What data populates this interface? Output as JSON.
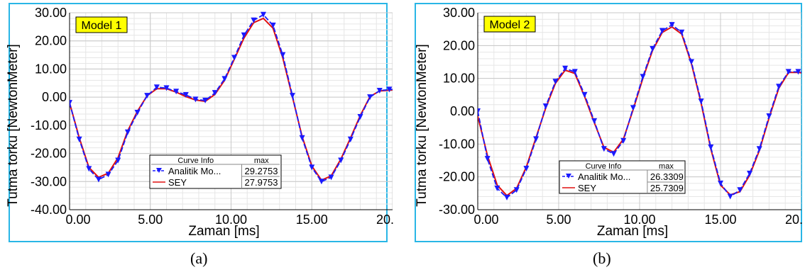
{
  "charts_meta": {
    "series_colors": {
      "analitik": "#1a1aff",
      "sey": "#e01010"
    },
    "frame_color": "#29b6e6",
    "model_label_bg": "#ffff00"
  },
  "chart_data": [
    {
      "type": "line",
      "panel_caption": "(a)",
      "model_label": "Model 1",
      "xlabel": "Zaman [ms]",
      "ylabel": "Tutma torku [NewtonMeter]",
      "xlim": [
        0,
        20
      ],
      "ylim": [
        -40,
        30
      ],
      "xticks": [
        0,
        5,
        10,
        15,
        20
      ],
      "xtick_labels": [
        "0.00",
        "5.00",
        "10.00",
        "15.00",
        "20."
      ],
      "yticks": [
        -40,
        -30,
        -20,
        -10,
        0,
        10,
        20,
        30
      ],
      "ytick_labels": [
        "-40.00",
        "-30.00",
        "-20.00",
        "-10.00",
        "0.00",
        "10.00",
        "20.00",
        "30.00"
      ],
      "grid": true,
      "legend": {
        "header": "Curve Info",
        "col_header": "max",
        "rows": [
          {
            "name": "Analitik Mo...",
            "max": "29.2753"
          },
          {
            "name": "SEY",
            "max": "27.9753"
          }
        ]
      },
      "x": [
        0.0,
        0.6,
        1.2,
        1.8,
        2.4,
        3.0,
        3.6,
        4.2,
        4.8,
        5.4,
        6.0,
        6.6,
        7.2,
        7.8,
        8.4,
        9.0,
        9.6,
        10.2,
        10.8,
        11.4,
        12.0,
        12.6,
        13.2,
        13.8,
        14.4,
        15.0,
        15.6,
        16.2,
        16.8,
        17.4,
        18.0,
        18.6,
        19.2,
        19.8,
        20.3
      ],
      "series": [
        {
          "name": "Analitik Mo...",
          "values": [
            -2.0,
            -15.0,
            -25.5,
            -29.3,
            -27.5,
            -22.5,
            -12.5,
            -5.5,
            0.5,
            3.5,
            3.2,
            2.0,
            0.8,
            -0.8,
            -1.2,
            1.5,
            6.5,
            14.0,
            22.0,
            27.3,
            29.3,
            25.5,
            15.0,
            0.5,
            -14.5,
            -25.0,
            -30.0,
            -28.5,
            -22.5,
            -15.0,
            -7.0,
            0.0,
            2.3,
            2.7,
            2.8
          ],
          "markers": true
        },
        {
          "name": "SEY",
          "values": [
            -2.0,
            -14.5,
            -25.0,
            -28.5,
            -27.0,
            -21.5,
            -12.0,
            -5.0,
            0.5,
            3.0,
            3.0,
            1.8,
            0.2,
            -1.0,
            -1.5,
            1.0,
            6.0,
            13.5,
            21.0,
            26.5,
            28.0,
            24.5,
            14.0,
            0.0,
            -14.0,
            -24.5,
            -29.5,
            -28.0,
            -22.0,
            -14.5,
            -6.5,
            0.2,
            2.2,
            2.5,
            2.6
          ],
          "markers": false
        }
      ]
    },
    {
      "type": "line",
      "panel_caption": "(b)",
      "model_label": "Model 2",
      "xlabel": "Zaman [ms]",
      "ylabel": "Tutma torku [NewtonMeter]",
      "xlim": [
        0,
        20
      ],
      "ylim": [
        -30,
        30
      ],
      "xticks": [
        0,
        5,
        10,
        15,
        20
      ],
      "xtick_labels": [
        "0.00",
        "5.00",
        "10.00",
        "15.00",
        "20."
      ],
      "yticks": [
        -30,
        -20,
        -10,
        0,
        10,
        20,
        30
      ],
      "ytick_labels": [
        "-30.00",
        "-20.00",
        "-10.00",
        "0.00",
        "10.00",
        "20.00",
        "30.00"
      ],
      "grid": true,
      "legend": {
        "header": "Curve Info",
        "col_header": "max",
        "rows": [
          {
            "name": "Analitik Mo...",
            "max": "26.3309"
          },
          {
            "name": "SEY",
            "max": "25.7309"
          }
        ]
      },
      "x": [
        0.0,
        0.6,
        1.2,
        1.8,
        2.4,
        3.0,
        3.6,
        4.2,
        4.8,
        5.4,
        6.0,
        6.6,
        7.2,
        7.8,
        8.4,
        9.0,
        9.6,
        10.2,
        10.8,
        11.4,
        12.0,
        12.6,
        13.2,
        13.8,
        14.4,
        15.0,
        15.6,
        16.2,
        16.8,
        17.4,
        18.0,
        18.6,
        19.2,
        19.8,
        20.3
      ],
      "series": [
        {
          "name": "Analitik Mo...",
          "values": [
            0.0,
            -14.5,
            -23.5,
            -26.3,
            -24.0,
            -17.5,
            -8.5,
            1.5,
            9.0,
            13.0,
            12.0,
            5.0,
            -3.0,
            -11.5,
            -13.0,
            -9.0,
            1.0,
            10.5,
            19.0,
            24.5,
            26.3,
            24.0,
            15.0,
            3.0,
            -11.0,
            -22.0,
            -26.0,
            -24.0,
            -19.0,
            -11.5,
            -1.5,
            7.5,
            12.0,
            12.0,
            11.8
          ],
          "markers": true
        },
        {
          "name": "SEY",
          "values": [
            -1.5,
            -13.5,
            -22.5,
            -25.7,
            -23.5,
            -17.0,
            -8.0,
            1.0,
            8.5,
            12.5,
            11.5,
            4.5,
            -3.5,
            -11.0,
            -12.5,
            -8.5,
            0.5,
            10.0,
            18.5,
            24.0,
            25.7,
            23.5,
            14.5,
            2.5,
            -11.5,
            -22.5,
            -25.5,
            -24.5,
            -19.5,
            -12.0,
            -2.0,
            7.0,
            11.8,
            11.8,
            11.6
          ],
          "markers": false
        }
      ]
    }
  ]
}
